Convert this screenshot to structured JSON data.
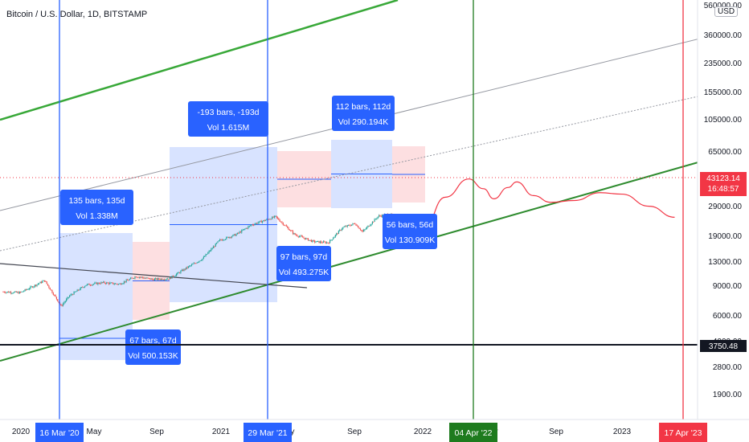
{
  "chart_data": {
    "type": "candlestick",
    "title": "Bitcoin / U.S. Dollar, 1D, BITSTAMP",
    "currency": "USD",
    "y_scale": "log",
    "y_ticks": [
      "560000.00",
      "360000.00",
      "235000.00",
      "155000.00",
      "105000.00",
      "65000.00",
      "29000.00",
      "19000.00",
      "13000.00",
      "9000.00",
      "6000.00",
      "4000.00",
      "2800.00",
      "1900.00"
    ],
    "x_ticks": [
      "2020",
      "May",
      "Sep",
      "2021",
      "May",
      "Sep",
      "2022",
      "May",
      "Sep",
      "2023"
    ],
    "markers": [
      {
        "label": "16 Mar '20",
        "color": "#2962ff"
      },
      {
        "label": "29 Mar '21",
        "color": "#2962ff"
      },
      {
        "label": "04 Apr '22",
        "color": "#1e7b1e"
      },
      {
        "label": "17 Apr '23",
        "color": "#f23645"
      }
    ],
    "price_labels": [
      {
        "lines": [
          "43123.14",
          "16:48:57"
        ],
        "color": "#f23645"
      },
      {
        "lines": [
          "3750.48"
        ],
        "color": "#131722"
      }
    ],
    "range_boxes": [
      {
        "text": [
          "135 bars, 135d",
          "Vol 1.338M"
        ]
      },
      {
        "text": [
          "67 bars, 67d",
          "Vol 500.153K"
        ]
      },
      {
        "text": [
          "-193 bars, -193d",
          "Vol 1.615M"
        ]
      },
      {
        "text": [
          "97 bars, 97d",
          "Vol 493.275K"
        ]
      },
      {
        "text": [
          "112 bars, 112d",
          "Vol 290.194K"
        ]
      },
      {
        "text": [
          "56 bars, 56d",
          "Vol 130.909K"
        ]
      }
    ],
    "price_path": [
      [
        "2019-12-01",
        7400
      ],
      [
        "2020-01-01",
        7200
      ],
      [
        "2020-02-15",
        10200
      ],
      [
        "2020-03-12",
        5500
      ],
      [
        "2020-03-16",
        4900
      ],
      [
        "2020-04-01",
        6600
      ],
      [
        "2020-05-01",
        9000
      ],
      [
        "2020-06-01",
        9600
      ],
      [
        "2020-07-01",
        9200
      ],
      [
        "2020-08-01",
        11500
      ],
      [
        "2020-09-01",
        10500
      ],
      [
        "2020-10-01",
        10800
      ],
      [
        "2020-11-01",
        14500
      ],
      [
        "2020-12-01",
        19000
      ],
      [
        "2021-01-01",
        32000
      ],
      [
        "2021-02-01",
        38000
      ],
      [
        "2021-03-01",
        50000
      ],
      [
        "2021-04-14",
        63000
      ],
      [
        "2021-05-19",
        38000
      ],
      [
        "2021-06-22",
        31000
      ],
      [
        "2021-07-20",
        30000
      ],
      [
        "2021-08-15",
        46000
      ],
      [
        "2021-09-07",
        52000
      ],
      [
        "2021-09-21",
        41000
      ],
      [
        "2021-10-20",
        64000
      ],
      [
        "2021-11-10",
        68000
      ],
      [
        "2021-12-04",
        48000
      ],
      [
        "2021-12-25",
        50000
      ],
      [
        "2022-01-10",
        43000
      ]
    ],
    "projection": [
      [
        "2022-01-10",
        43000
      ],
      [
        "2022-02-20",
        110000
      ],
      [
        "2022-04-04",
        185000
      ],
      [
        "2022-05-01",
        140000
      ],
      [
        "2022-05-20",
        105000
      ],
      [
        "2022-06-15",
        145000
      ],
      [
        "2022-07-01",
        170000
      ],
      [
        "2022-08-01",
        115000
      ],
      [
        "2022-09-01",
        95000
      ],
      [
        "2022-10-15",
        100000
      ],
      [
        "2022-12-01",
        125000
      ],
      [
        "2023-01-10",
        120000
      ],
      [
        "2023-03-01",
        85000
      ],
      [
        "2023-04-17",
        62000
      ]
    ]
  }
}
